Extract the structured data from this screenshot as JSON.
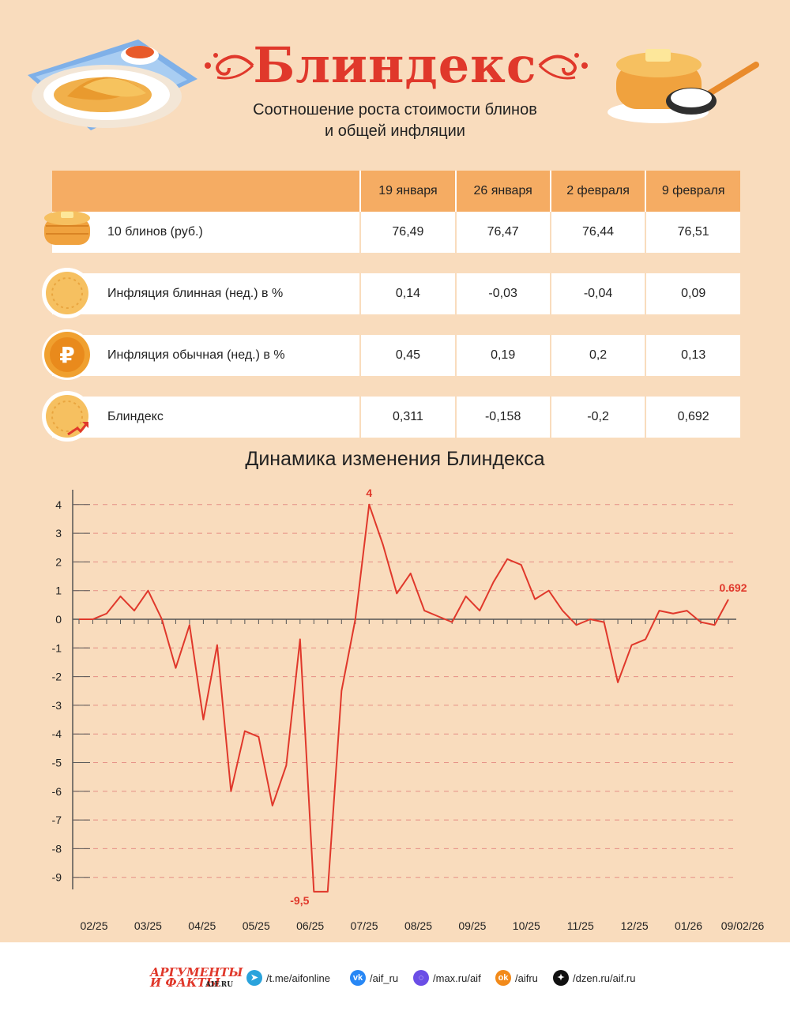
{
  "header": {
    "title": "Блиндекс",
    "subtitle_line1": "Соотношение роста стоимости блинов",
    "subtitle_line2": "и общей инфляции"
  },
  "table": {
    "columns": [
      "19 января",
      "26 января",
      "2 февраля",
      "9 февраля"
    ],
    "rows": [
      {
        "label": "10 блинов (руб.)",
        "icon": "pancake-stack-icon",
        "values": [
          "76,49",
          "76,47",
          "76,44",
          "76,51"
        ]
      },
      {
        "label": "Инфляция блинная (нед.) в %",
        "icon": "pancake-icon",
        "values": [
          "0,14",
          "-0,03",
          "-0,04",
          "0,09"
        ]
      },
      {
        "label": "Инфляция обычная (нед.) в %",
        "icon": "ruble-coin-icon",
        "values": [
          "0,45",
          "0,19",
          "0,2",
          "0,13"
        ]
      },
      {
        "label": "Блиндекс",
        "icon": "pancake-growth-icon",
        "values": [
          "0,311",
          "-0,158",
          "-0,2",
          "0,692"
        ]
      }
    ]
  },
  "chart_data": {
    "type": "line",
    "title": "Динамика изменения Блиндекса",
    "x_tick_labels": [
      "02/25",
      "03/25",
      "04/25",
      "05/25",
      "06/25",
      "07/25",
      "08/25",
      "09/25",
      "10/25",
      "11/25",
      "12/25",
      "01/26",
      "09/02/26"
    ],
    "y_tick_labels": [
      "4",
      "3",
      "2",
      "1",
      "0",
      "-1",
      "-2",
      "-3",
      "-4",
      "-5",
      "-6",
      "-7",
      "-8",
      "-9"
    ],
    "ylim": [
      -9.5,
      4
    ],
    "grid": "dashed horizontal",
    "line_color": "#e0382b",
    "series": [
      {
        "values": [
          0,
          0,
          0.2,
          0.8,
          0.3,
          1.0,
          0.0,
          -1.7,
          -0.2,
          -3.5,
          -0.9,
          -6.0,
          -3.9,
          -4.1,
          -6.5,
          -5.1,
          -0.7,
          -9.5,
          -9.5,
          -2.5,
          0.0,
          4.0,
          2.6,
          0.9,
          1.6,
          0.3,
          0.1,
          -0.1,
          0.8,
          0.3,
          1.3,
          2.1,
          1.9,
          0.7,
          1.0,
          0.3,
          -0.2,
          0.0,
          -0.1,
          -2.2,
          -0.9,
          -0.7,
          0.3,
          0.2,
          0.3,
          -0.1,
          -0.2,
          0.692
        ]
      }
    ],
    "annotations": [
      {
        "label": "4",
        "value": 4
      },
      {
        "label": "-9,5",
        "value": -9.5
      },
      {
        "label": "0.692",
        "value": 0.692
      }
    ]
  },
  "footer": {
    "logo_line1": "АРГУМЕНТЫ",
    "logo_line2": "И ФАКТЫ",
    "logo_site": "AIF.RU",
    "links": [
      {
        "icon": "telegram-icon",
        "text": "/t.me/aifonline",
        "color": "#2aa3dc",
        "glyph": "➤"
      },
      {
        "icon": "vk-icon",
        "text": "/aif_ru",
        "color": "#2787f5",
        "glyph": "vk"
      },
      {
        "icon": "max-icon",
        "text": "/max.ru/aif",
        "color": "#6b4ee6",
        "glyph": "◌"
      },
      {
        "icon": "odnoklassniki-icon",
        "text": "/aifru",
        "color": "#f28a1a",
        "glyph": "ok"
      },
      {
        "icon": "dzen-icon",
        "text": "/dzen.ru/aif.ru",
        "color": "#111111",
        "glyph": "✦"
      }
    ]
  }
}
